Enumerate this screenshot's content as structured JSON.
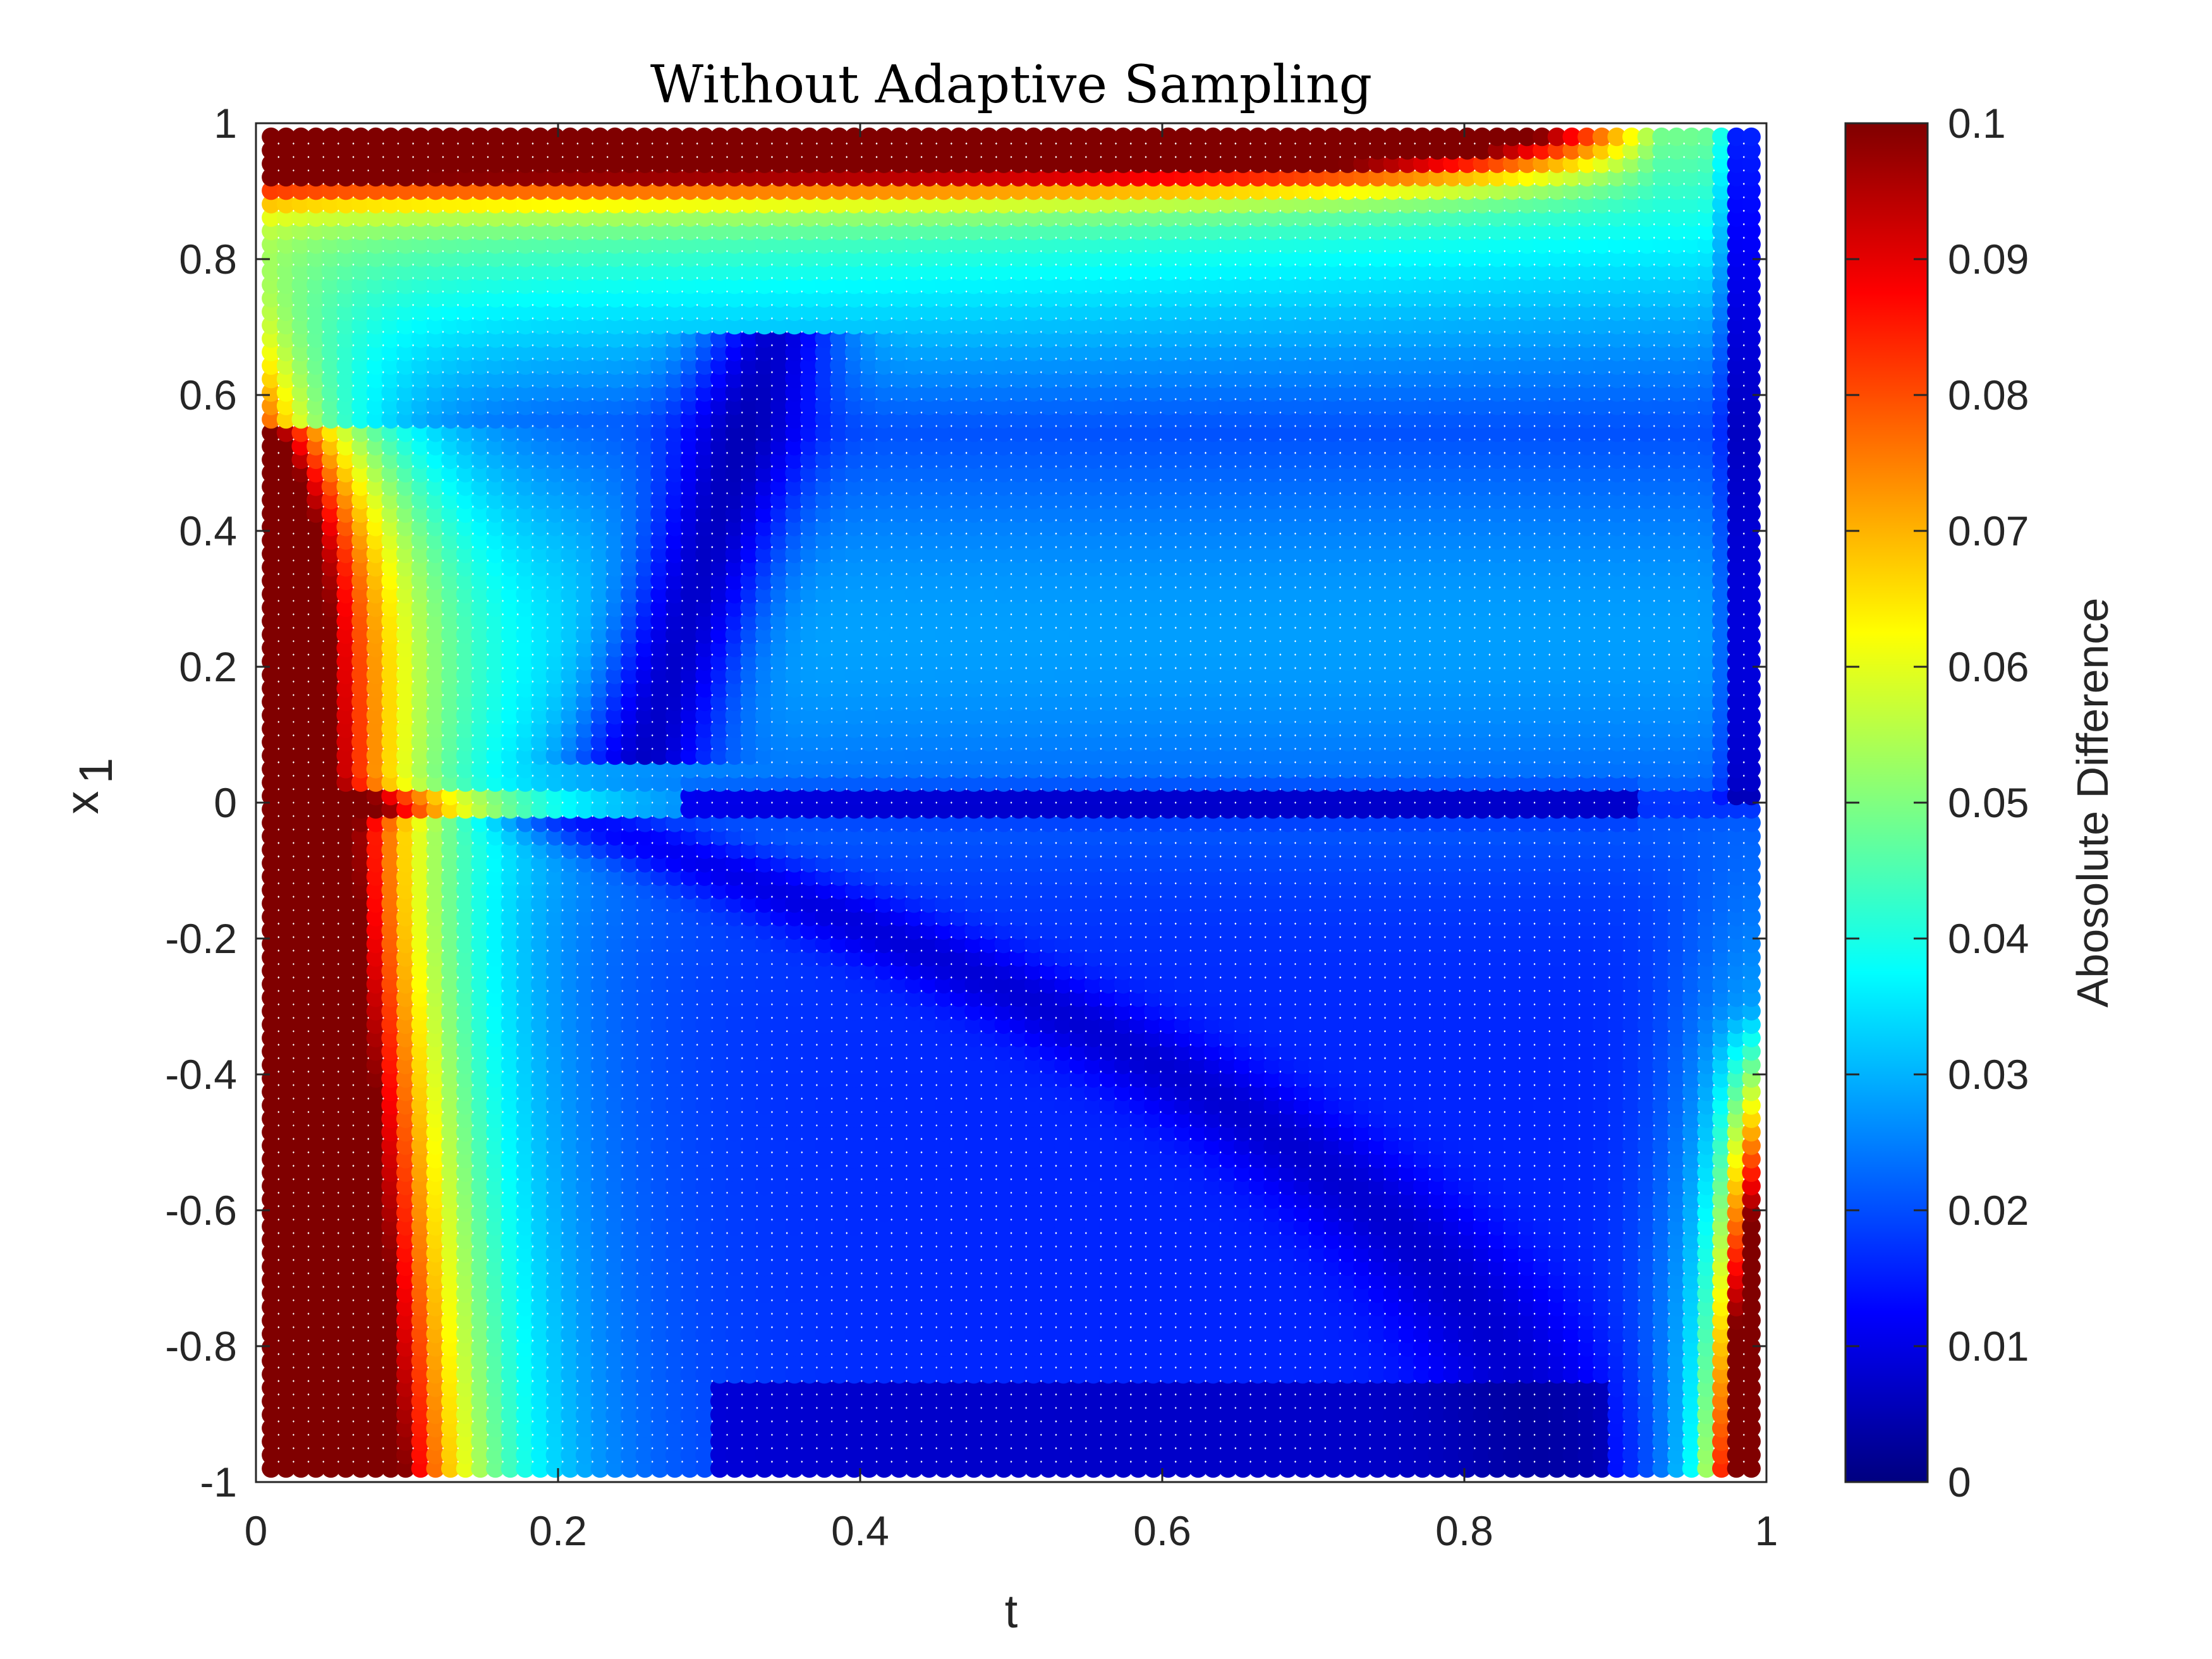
{
  "chart_data": {
    "type": "heatmap",
    "title": "Without Adaptive Sampling",
    "xlabel": "t",
    "ylabel": "x",
    "ylabel_subscript": "1",
    "xlim": [
      0,
      1
    ],
    "ylim": [
      -1,
      1
    ],
    "x_ticks": [
      "0",
      "0.2",
      "0.4",
      "0.6",
      "0.8",
      "1"
    ],
    "x_tick_values": [
      0,
      0.2,
      0.4,
      0.6,
      0.8,
      1
    ],
    "y_ticks": [
      "-1",
      "-0.8",
      "-0.6",
      "-0.4",
      "-0.2",
      "0",
      "0.2",
      "0.4",
      "0.6",
      "0.8",
      "1"
    ],
    "y_tick_values": [
      -1,
      -0.8,
      -0.6,
      -0.4,
      -0.2,
      0,
      0.2,
      0.4,
      0.6,
      0.8,
      1
    ],
    "colorbar": {
      "label": "Abosolute Difference",
      "range": [
        0,
        0.1
      ],
      "ticks": [
        "0",
        "0.01",
        "0.02",
        "0.03",
        "0.04",
        "0.05",
        "0.06",
        "0.07",
        "0.08",
        "0.09",
        "0.1"
      ],
      "tick_values": [
        0,
        0.01,
        0.02,
        0.03,
        0.04,
        0.05,
        0.06,
        0.07,
        0.08,
        0.09,
        0.1
      ],
      "colormap": "jet"
    },
    "grid": false,
    "markers": "filled circles on a regular t-x grid",
    "grid_points": {
      "t_count": 100,
      "x_count": 100,
      "t_range": [
        0.01,
        0.99
      ],
      "x_range": [
        -0.98,
        0.98
      ]
    },
    "features": [
      {
        "region": "upper band x≈0.9–1, t<0.9",
        "value": 0.1
      },
      {
        "region": "left edge x<0, t<0.05",
        "value": 0.1
      },
      {
        "region": "near x=0 line, t<0.05",
        "value": 0.1
      },
      {
        "region": "bottom-right corner t≈0.99, x≈-1",
        "value": 0.1
      },
      {
        "region": "central interior",
        "value": 0.015
      },
      {
        "region": "trough along x=0, t 0.3–0.9",
        "value": 0.0
      }
    ]
  }
}
